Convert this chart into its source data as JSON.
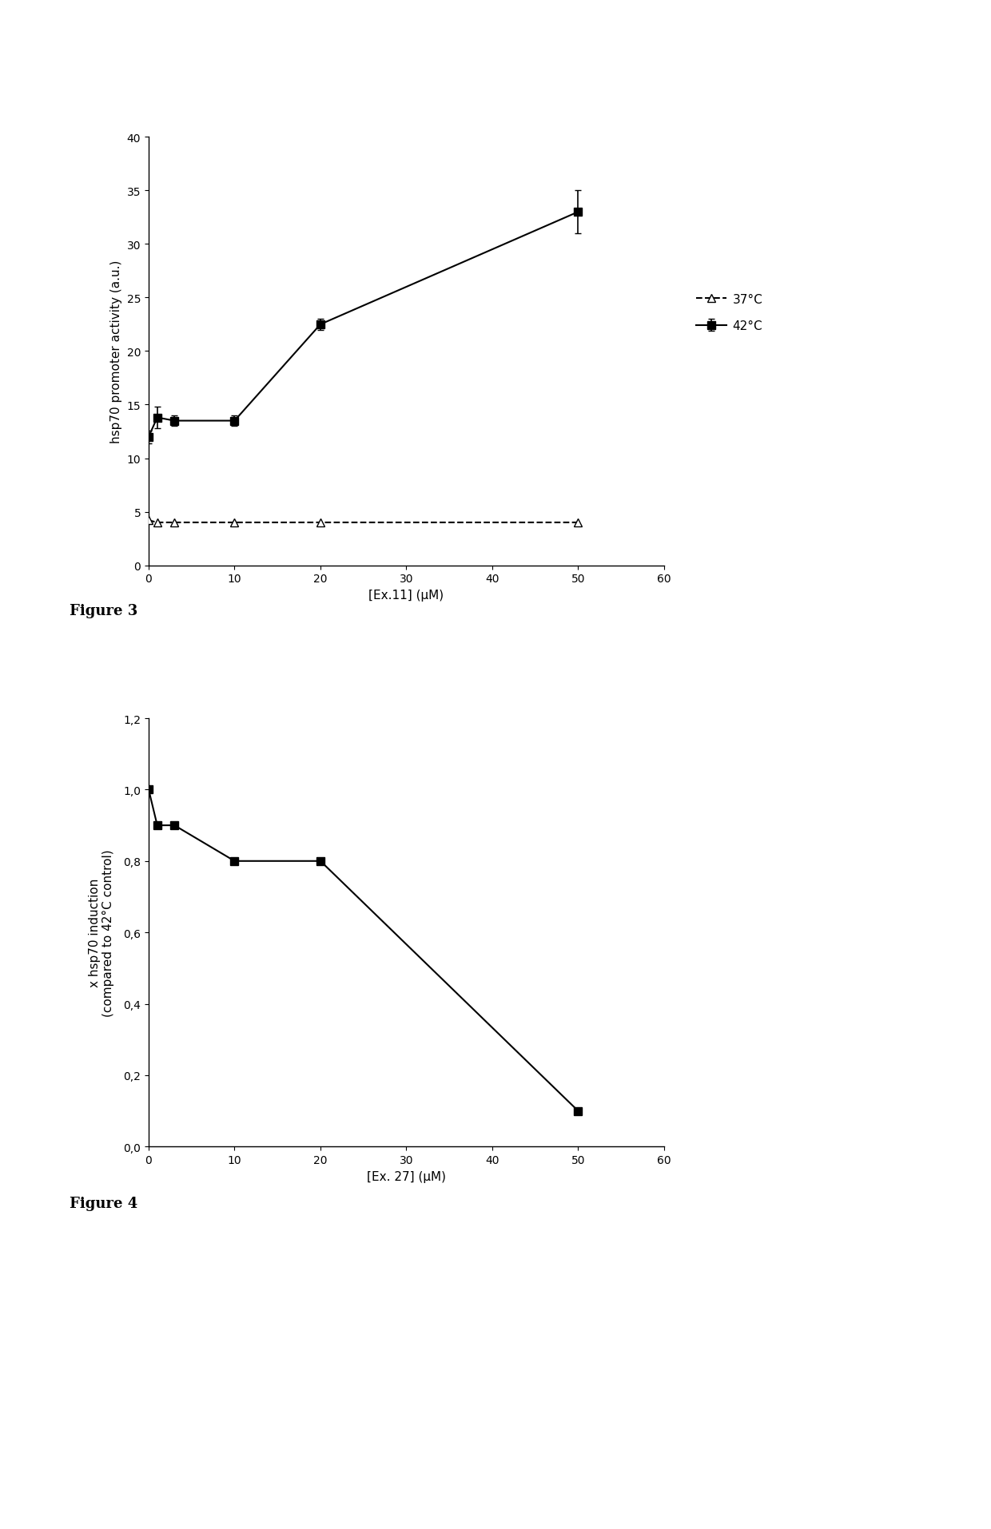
{
  "fig3": {
    "line42": {
      "x": [
        0,
        1,
        3,
        10,
        20,
        50
      ],
      "y": [
        12.0,
        13.8,
        13.5,
        13.5,
        22.5,
        33.0
      ],
      "yerr": [
        0.6,
        1.0,
        0.5,
        0.5,
        0.5,
        2.0
      ],
      "label": "42°C",
      "color": "black",
      "linestyle": "-",
      "marker": "s"
    },
    "line37": {
      "x": [
        0,
        1,
        3,
        10,
        20,
        50
      ],
      "y": [
        4.2,
        4.0,
        4.0,
        4.0,
        4.0,
        4.0
      ],
      "label": "37°C",
      "color": "black",
      "linestyle": "--",
      "marker": "^"
    },
    "xlabel": "[Ex.11] (μM)",
    "ylabel": "hsp70 promoter activity (a.u.)",
    "ylim": [
      0,
      40
    ],
    "xlim": [
      0,
      60
    ],
    "yticks": [
      0,
      5,
      10,
      15,
      20,
      25,
      30,
      35,
      40
    ],
    "xticks": [
      0,
      10,
      20,
      30,
      40,
      50,
      60
    ],
    "figure_label": "Figure 3"
  },
  "fig4": {
    "line": {
      "x": [
        0,
        1,
        3,
        10,
        20,
        50
      ],
      "y": [
        1.0,
        0.9,
        0.9,
        0.8,
        0.8,
        0.1
      ],
      "label": "",
      "color": "black",
      "linestyle": "-",
      "marker": "s"
    },
    "xlabel": "[Ex. 27] (μM)",
    "ylabel": "x hsp70 induction\n(compared to 42°C control)",
    "ylim": [
      0.0,
      1.2
    ],
    "xlim": [
      0,
      60
    ],
    "yticks": [
      0.0,
      0.2,
      0.4,
      0.6,
      0.8,
      1.0,
      1.2
    ],
    "xticks": [
      0,
      10,
      20,
      30,
      40,
      50,
      60
    ],
    "figure_label": "Figure 4"
  },
  "background_color": "#ffffff",
  "text_color": "#000000"
}
